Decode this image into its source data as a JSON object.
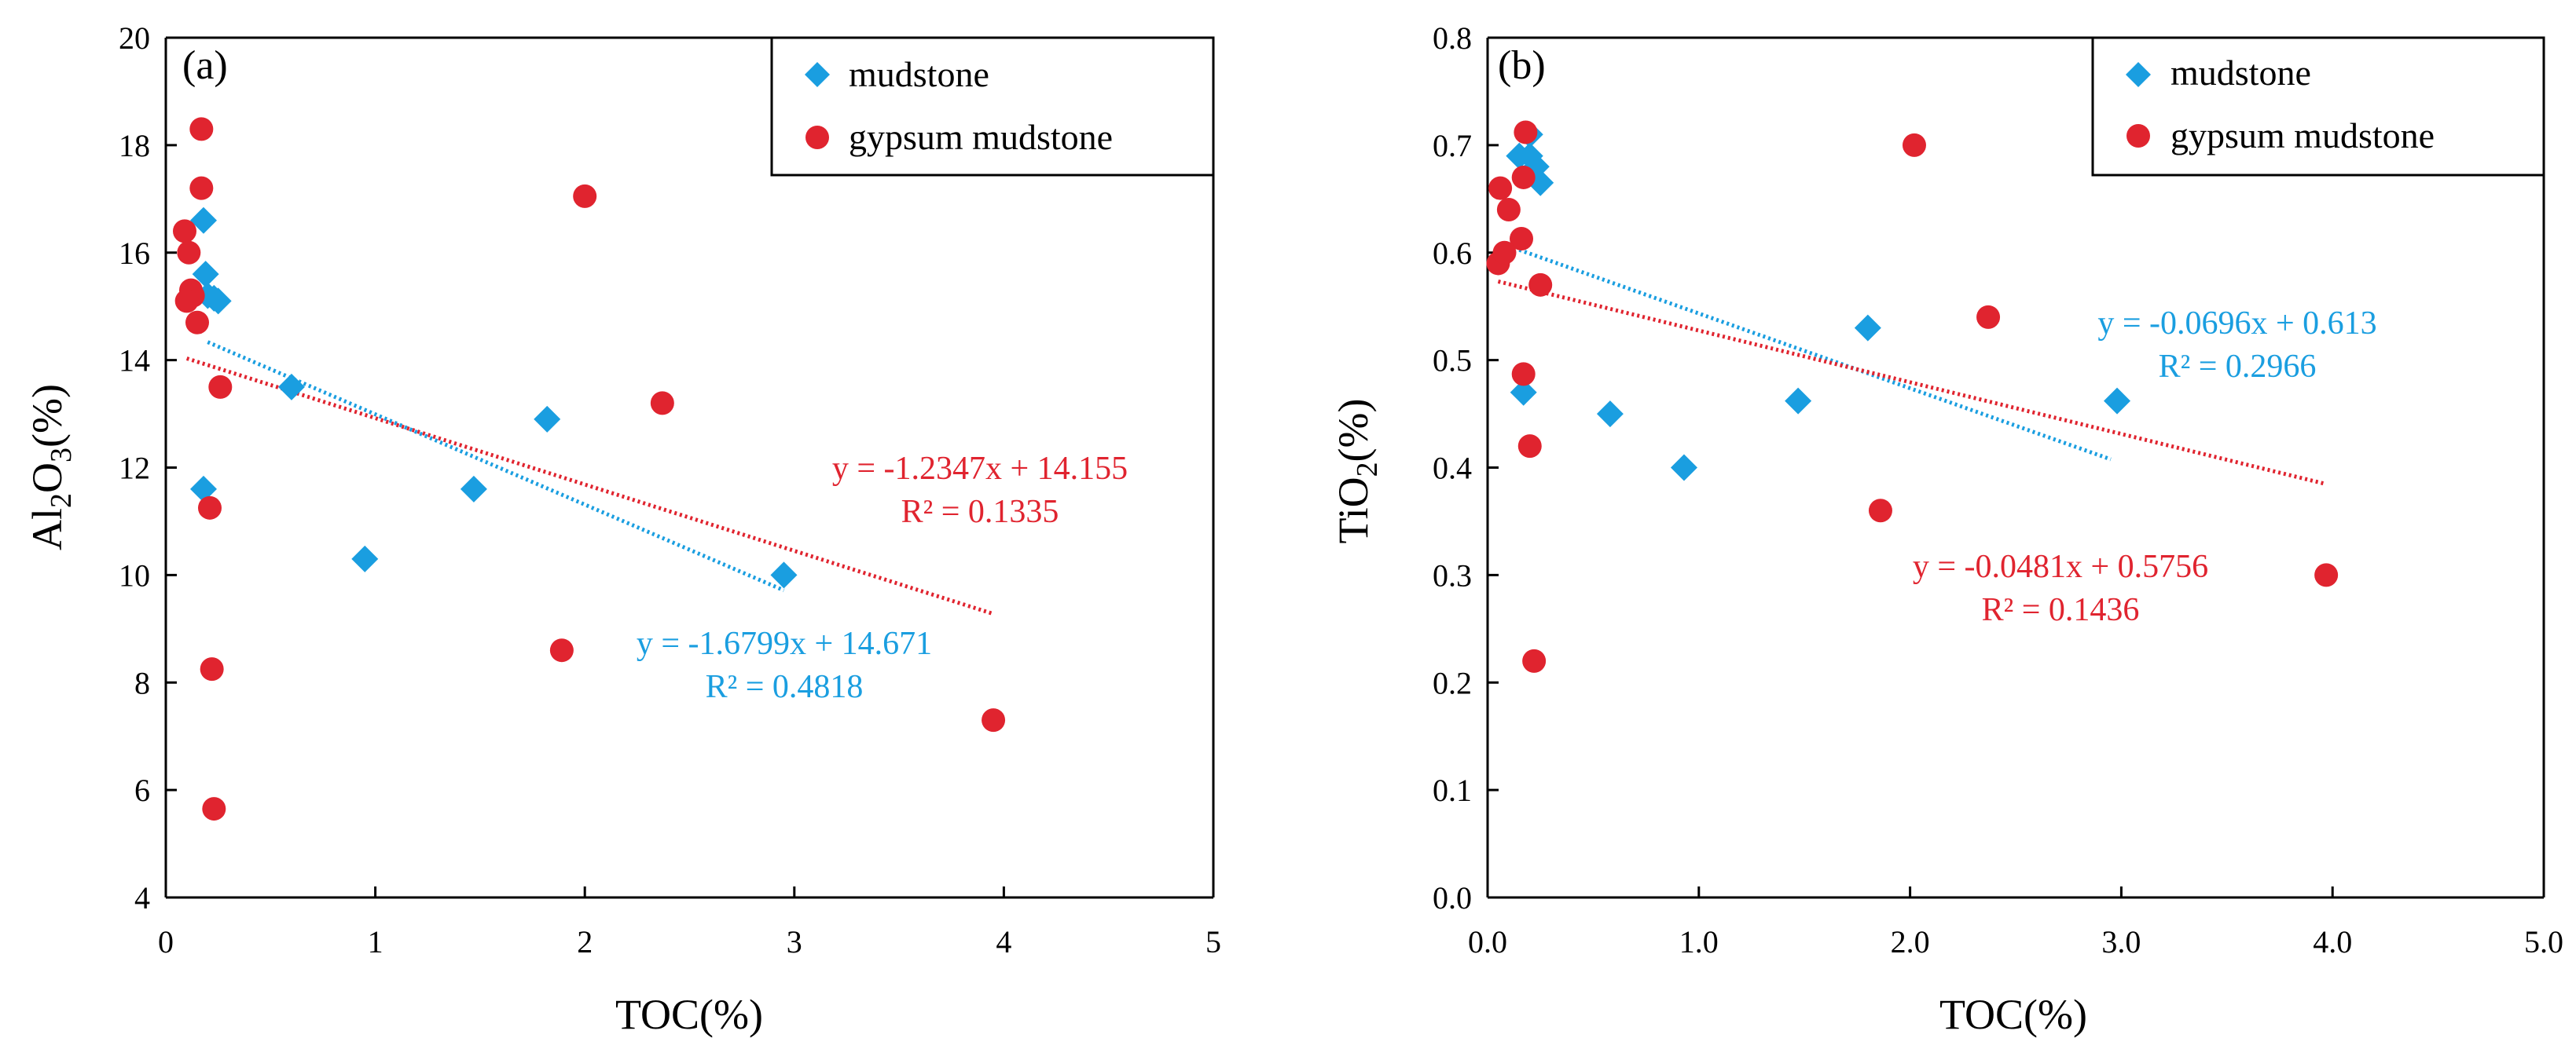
{
  "colors": {
    "mudstone": "#1a9ee0",
    "gypsum": "#e0242f",
    "axis": "#000000"
  },
  "chart_data": [
    {
      "type": "scatter",
      "panel_label": "(a)",
      "xlabel": "TOC(%)",
      "ylabel_main": "Al",
      "ylabel_sub1": "2",
      "ylabel_mid": "O",
      "ylabel_sub2": "3",
      "ylabel_tail": "(%)",
      "xlim": [
        0,
        5
      ],
      "ylim": [
        4,
        20
      ],
      "xticks": [
        0,
        1,
        2,
        3,
        4,
        5
      ],
      "xtick_labels": [
        "0",
        "1",
        "2",
        "3",
        "4",
        "5"
      ],
      "yticks": [
        4,
        6,
        8,
        10,
        12,
        14,
        16,
        18,
        20
      ],
      "ytick_labels": [
        "4",
        "6",
        "8",
        "10",
        "12",
        "14",
        "16",
        "18",
        "20"
      ],
      "grid": false,
      "legend_position": "top-right",
      "series": [
        {
          "name": "mudstone",
          "marker": "diamond",
          "color": "#1a9ee0",
          "x": [
            0.18,
            0.19,
            0.2,
            0.23,
            0.25,
            0.18,
            0.6,
            0.95,
            1.47,
            1.82,
            2.95
          ],
          "y": [
            16.6,
            15.6,
            15.2,
            15.15,
            15.1,
            11.6,
            13.5,
            10.3,
            11.6,
            12.9,
            10.0
          ],
          "trendline": {
            "slope": -1.6799,
            "intercept": 14.671,
            "x_range": [
              0.2,
              2.95
            ],
            "equation": "y = -1.6799x + 14.671",
            "r2": "R² = 0.4818"
          }
        },
        {
          "name": "gypsum mudstone",
          "marker": "circle",
          "color": "#e0242f",
          "x": [
            0.09,
            0.17,
            0.17,
            0.11,
            0.12,
            0.13,
            0.1,
            0.15,
            0.26,
            0.21,
            0.22,
            0.23,
            2.0,
            2.37,
            1.89,
            3.95
          ],
          "y": [
            16.4,
            18.3,
            17.2,
            16.0,
            15.3,
            15.2,
            15.1,
            14.7,
            13.5,
            11.25,
            8.25,
            5.65,
            17.05,
            13.2,
            8.6,
            7.3
          ],
          "trendline": {
            "slope": -1.2347,
            "intercept": 14.155,
            "x_range": [
              0.1,
              3.95
            ],
            "equation": "y = -1.2347x + 14.155",
            "r2": "R² = 0.1335"
          }
        }
      ]
    },
    {
      "type": "scatter",
      "panel_label": "(b)",
      "xlabel": "TOC(%)",
      "ylabel_main": "TiO",
      "ylabel_sub1": "2",
      "ylabel_mid": "",
      "ylabel_sub2": "",
      "ylabel_tail": "(%)",
      "xlim": [
        0,
        5
      ],
      "ylim": [
        0,
        0.8
      ],
      "xticks": [
        0,
        1,
        2,
        3,
        4,
        5
      ],
      "xtick_labels": [
        "0.0",
        "1.0",
        "2.0",
        "3.0",
        "4.0",
        "5.0"
      ],
      "yticks": [
        0,
        0.1,
        0.2,
        0.3,
        0.4,
        0.5,
        0.6,
        0.7,
        0.8
      ],
      "ytick_labels": [
        "0.0",
        "0.1",
        "0.2",
        "0.3",
        "0.4",
        "0.5",
        "0.6",
        "0.7",
        "0.8"
      ],
      "grid": false,
      "legend_position": "top-right",
      "series": [
        {
          "name": "mudstone",
          "marker": "diamond",
          "color": "#1a9ee0",
          "x": [
            0.2,
            0.15,
            0.2,
            0.23,
            0.25,
            0.17,
            0.58,
            0.93,
            1.47,
            1.8,
            2.98
          ],
          "y": [
            0.71,
            0.69,
            0.69,
            0.68,
            0.665,
            0.47,
            0.45,
            0.4,
            0.462,
            0.53,
            0.462
          ],
          "trendline": {
            "slope": -0.0696,
            "intercept": 0.613,
            "x_range": [
              0.15,
              2.95
            ],
            "equation": "y = -0.0696x + 0.613",
            "r2": "R² = 0.2966"
          }
        },
        {
          "name": "gypsum mudstone",
          "marker": "circle",
          "color": "#e0242f",
          "x": [
            0.18,
            0.17,
            0.06,
            0.1,
            0.16,
            0.05,
            0.08,
            0.25,
            0.17,
            0.2,
            0.22,
            2.02,
            2.37,
            1.86,
            3.97
          ],
          "y": [
            0.712,
            0.67,
            0.66,
            0.64,
            0.613,
            0.59,
            0.6,
            0.57,
            0.487,
            0.42,
            0.22,
            0.7,
            0.54,
            0.36,
            0.3
          ],
          "trendline": {
            "slope": -0.0481,
            "intercept": 0.5756,
            "x_range": [
              0.05,
              3.97
            ],
            "equation": "y = -0.0481x + 0.5756",
            "r2": "R² = 0.1436"
          }
        }
      ]
    }
  ]
}
